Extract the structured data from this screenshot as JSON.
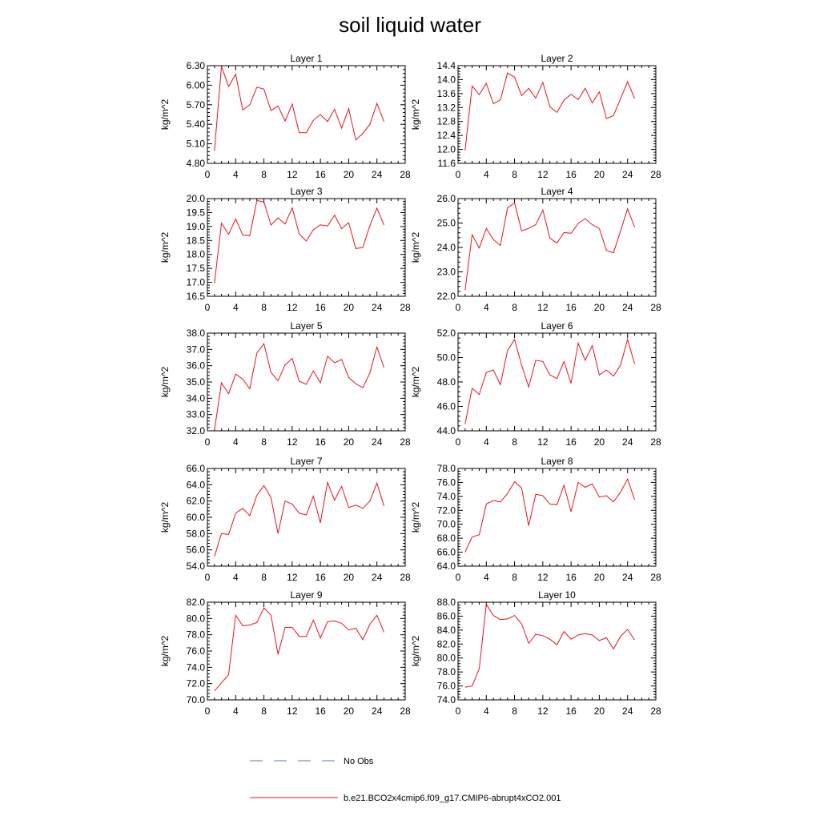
{
  "title": "soil liquid water",
  "colors": {
    "model": "#e8141c",
    "obs": "#5a6fd6",
    "axis": "#000000"
  },
  "legend": [
    {
      "label": "No Obs",
      "style": "dashed",
      "color": "#5a6fd6"
    },
    {
      "label": "b.e21.BCO2x4cmip6.f09_g17.CMIP6-abrupt4xCO2.001",
      "style": "solid",
      "color": "#e8141c"
    }
  ],
  "chart_data": [
    {
      "type": "line",
      "title": "Layer 1",
      "ylabel": "kg/m^2",
      "xlim": [
        0,
        28
      ],
      "xticks": [
        "0",
        "4",
        "8",
        "12",
        "16",
        "20",
        "24",
        "28"
      ],
      "ylim": [
        4.8,
        6.3
      ],
      "yticks": [
        "4.80",
        "5.10",
        "5.40",
        "5.70",
        "6.00",
        "6.30"
      ],
      "x": [
        1,
        2,
        3,
        4,
        5,
        6,
        7,
        8,
        9,
        10,
        11,
        12,
        13,
        14,
        15,
        16,
        17,
        18,
        19,
        20,
        21,
        22,
        23,
        24,
        25
      ],
      "series": [
        {
          "name": "b.e21.BCO2x4cmip6.f09_g17.CMIP6-abrupt4xCO2.001",
          "values": [
            4.99,
            6.29,
            5.98,
            6.17,
            5.62,
            5.7,
            5.97,
            5.94,
            5.61,
            5.68,
            5.45,
            5.71,
            5.27,
            5.27,
            5.46,
            5.55,
            5.44,
            5.63,
            5.34,
            5.64,
            5.16,
            5.26,
            5.4,
            5.72,
            5.44
          ]
        }
      ]
    },
    {
      "type": "line",
      "title": "Layer 2",
      "ylabel": "kg/m^2",
      "xlim": [
        0,
        28
      ],
      "xticks": [
        "0",
        "4",
        "8",
        "12",
        "16",
        "20",
        "24",
        "28"
      ],
      "ylim": [
        11.6,
        14.4
      ],
      "yticks": [
        "11.6",
        "12.0",
        "12.4",
        "12.8",
        "13.2",
        "13.6",
        "14.0",
        "14.4"
      ],
      "x": [
        1,
        2,
        3,
        4,
        5,
        6,
        7,
        8,
        9,
        10,
        11,
        12,
        13,
        14,
        15,
        16,
        17,
        18,
        19,
        20,
        21,
        22,
        23,
        24,
        25
      ],
      "series": [
        {
          "name": "b.e21.BCO2x4cmip6.f09_g17.CMIP6-abrupt4xCO2.001",
          "values": [
            11.97,
            13.82,
            13.57,
            13.89,
            13.31,
            13.42,
            14.19,
            14.07,
            13.54,
            13.75,
            13.47,
            13.92,
            13.22,
            13.06,
            13.41,
            13.58,
            13.43,
            13.75,
            13.33,
            13.65,
            12.88,
            12.97,
            13.45,
            13.94,
            13.46
          ]
        }
      ]
    },
    {
      "type": "line",
      "title": "Layer 3",
      "ylabel": "kg/m^2",
      "xlim": [
        0,
        28
      ],
      "xticks": [
        "0",
        "4",
        "8",
        "12",
        "16",
        "20",
        "24",
        "28"
      ],
      "ylim": [
        16.5,
        20.0
      ],
      "yticks": [
        "16.5",
        "17.0",
        "17.5",
        "18.0",
        "18.5",
        "19.0",
        "19.5",
        "20.0"
      ],
      "x": [
        1,
        2,
        3,
        4,
        5,
        6,
        7,
        8,
        9,
        10,
        11,
        12,
        13,
        14,
        15,
        16,
        17,
        18,
        19,
        20,
        21,
        22,
        23,
        24,
        25
      ],
      "series": [
        {
          "name": "b.e21.BCO2x4cmip6.f09_g17.CMIP6-abrupt4xCO2.001",
          "values": [
            16.97,
            19.12,
            18.72,
            19.27,
            18.7,
            18.67,
            19.93,
            19.88,
            19.05,
            19.31,
            19.09,
            19.67,
            18.73,
            18.48,
            18.88,
            19.06,
            19.02,
            19.41,
            18.92,
            19.14,
            18.21,
            18.25,
            19.03,
            19.66,
            19.05
          ]
        }
      ]
    },
    {
      "type": "line",
      "title": "Layer 4",
      "ylabel": "kg/m^2",
      "xlim": [
        0,
        28
      ],
      "xticks": [
        "0",
        "4",
        "8",
        "12",
        "16",
        "20",
        "24",
        "28"
      ],
      "ylim": [
        22.0,
        26.0
      ],
      "yticks": [
        "22.0",
        "23.0",
        "24.0",
        "25.0",
        "26.0"
      ],
      "x": [
        1,
        2,
        3,
        4,
        5,
        6,
        7,
        8,
        9,
        10,
        11,
        12,
        13,
        14,
        15,
        16,
        17,
        18,
        19,
        20,
        21,
        22,
        23,
        24,
        25
      ],
      "series": [
        {
          "name": "b.e21.BCO2x4cmip6.f09_g17.CMIP6-abrupt4xCO2.001",
          "values": [
            22.25,
            24.52,
            23.98,
            24.78,
            24.32,
            24.08,
            25.62,
            25.83,
            24.68,
            24.78,
            24.93,
            25.53,
            24.38,
            24.18,
            24.61,
            24.58,
            24.98,
            25.18,
            24.93,
            24.78,
            23.88,
            23.78,
            24.68,
            25.58,
            24.83
          ]
        }
      ]
    },
    {
      "type": "line",
      "title": "Layer 5",
      "ylabel": "kg/m^2",
      "xlim": [
        0,
        28
      ],
      "xticks": [
        "0",
        "4",
        "8",
        "12",
        "16",
        "20",
        "24",
        "28"
      ],
      "ylim": [
        32.0,
        38.0
      ],
      "yticks": [
        "32.0",
        "33.0",
        "34.0",
        "35.0",
        "36.0",
        "37.0",
        "38.0"
      ],
      "x": [
        1,
        2,
        3,
        4,
        5,
        6,
        7,
        8,
        9,
        10,
        11,
        12,
        13,
        14,
        15,
        16,
        17,
        18,
        19,
        20,
        21,
        22,
        23,
        24,
        25
      ],
      "series": [
        {
          "name": "b.e21.BCO2x4cmip6.f09_g17.CMIP6-abrupt4xCO2.001",
          "values": [
            32.05,
            34.95,
            34.28,
            35.48,
            35.18,
            34.58,
            36.78,
            37.35,
            35.58,
            35.08,
            36.05,
            36.45,
            35.05,
            34.85,
            35.68,
            34.95,
            36.58,
            36.18,
            36.38,
            35.28,
            34.88,
            34.65,
            35.55,
            37.15,
            35.88
          ]
        }
      ]
    },
    {
      "type": "line",
      "title": "Layer 6",
      "ylabel": "kg/m^2",
      "xlim": [
        0,
        28
      ],
      "xticks": [
        "0",
        "4",
        "8",
        "12",
        "16",
        "20",
        "24",
        "28"
      ],
      "ylim": [
        44.0,
        52.0
      ],
      "yticks": [
        "44.0",
        "46.0",
        "48.0",
        "50.0",
        "52.0"
      ],
      "x": [
        1,
        2,
        3,
        4,
        5,
        6,
        7,
        8,
        9,
        10,
        11,
        12,
        13,
        14,
        15,
        16,
        17,
        18,
        19,
        20,
        21,
        22,
        23,
        24,
        25
      ],
      "series": [
        {
          "name": "b.e21.BCO2x4cmip6.f09_g17.CMIP6-abrupt4xCO2.001",
          "values": [
            44.55,
            47.48,
            46.98,
            48.78,
            48.98,
            47.78,
            50.58,
            51.48,
            49.38,
            47.58,
            49.78,
            49.68,
            48.58,
            48.28,
            49.68,
            47.88,
            51.18,
            49.78,
            50.98,
            48.58,
            48.98,
            48.48,
            49.38,
            51.48,
            49.48
          ]
        }
      ]
    },
    {
      "type": "line",
      "title": "Layer 7",
      "ylabel": "kg/m^2",
      "xlim": [
        0,
        28
      ],
      "xticks": [
        "0",
        "4",
        "8",
        "12",
        "16",
        "20",
        "24",
        "28"
      ],
      "ylim": [
        54.0,
        66.0
      ],
      "yticks": [
        "54.0",
        "56.0",
        "58.0",
        "60.0",
        "62.0",
        "64.0",
        "66.0"
      ],
      "x": [
        1,
        2,
        3,
        4,
        5,
        6,
        7,
        8,
        9,
        10,
        11,
        12,
        13,
        14,
        15,
        16,
        17,
        18,
        19,
        20,
        21,
        22,
        23,
        24,
        25
      ],
      "series": [
        {
          "name": "b.e21.BCO2x4cmip6.f09_g17.CMIP6-abrupt4xCO2.001",
          "values": [
            55.2,
            58.0,
            57.9,
            60.5,
            61.1,
            60.2,
            62.7,
            63.9,
            62.4,
            58.0,
            62.0,
            61.6,
            60.5,
            60.3,
            62.6,
            59.3,
            64.3,
            62.1,
            63.8,
            61.2,
            61.5,
            61.1,
            62.0,
            64.2,
            61.4
          ]
        }
      ]
    },
    {
      "type": "line",
      "title": "Layer 8",
      "ylabel": "kg/m^2",
      "xlim": [
        0,
        28
      ],
      "xticks": [
        "0",
        "4",
        "8",
        "12",
        "16",
        "20",
        "24",
        "28"
      ],
      "ylim": [
        64.0,
        78.0
      ],
      "yticks": [
        "64.0",
        "66.0",
        "68.0",
        "70.0",
        "72.0",
        "74.0",
        "76.0",
        "78.0"
      ],
      "x": [
        1,
        2,
        3,
        4,
        5,
        6,
        7,
        8,
        9,
        10,
        11,
        12,
        13,
        14,
        15,
        16,
        17,
        18,
        19,
        20,
        21,
        22,
        23,
        24,
        25
      ],
      "series": [
        {
          "name": "b.e21.BCO2x4cmip6.f09_g17.CMIP6-abrupt4xCO2.001",
          "values": [
            66.0,
            68.2,
            68.5,
            72.9,
            73.4,
            73.2,
            74.4,
            76.1,
            75.2,
            69.8,
            74.3,
            74.1,
            72.9,
            72.8,
            75.6,
            71.8,
            76.0,
            75.3,
            75.8,
            73.9,
            74.1,
            73.2,
            74.6,
            76.5,
            73.5
          ]
        }
      ]
    },
    {
      "type": "line",
      "title": "Layer 9",
      "ylabel": "kg/m^2",
      "xlim": [
        0,
        28
      ],
      "xticks": [
        "0",
        "4",
        "8",
        "12",
        "16",
        "20",
        "24",
        "28"
      ],
      "ylim": [
        70.0,
        82.0
      ],
      "yticks": [
        "70.0",
        "72.0",
        "74.0",
        "76.0",
        "78.0",
        "80.0",
        "82.0"
      ],
      "x": [
        1,
        2,
        3,
        4,
        5,
        6,
        7,
        8,
        9,
        10,
        11,
        12,
        13,
        14,
        15,
        16,
        17,
        18,
        19,
        20,
        21,
        22,
        23,
        24,
        25
      ],
      "series": [
        {
          "name": "b.e21.BCO2x4cmip6.f09_g17.CMIP6-abrupt4xCO2.001",
          "values": [
            71.1,
            72.1,
            73.1,
            80.4,
            79.1,
            79.2,
            79.5,
            81.3,
            80.4,
            75.6,
            78.9,
            78.9,
            77.8,
            77.8,
            79.8,
            77.6,
            79.6,
            79.7,
            79.4,
            78.6,
            78.8,
            77.4,
            79.3,
            80.4,
            78.3
          ]
        }
      ]
    },
    {
      "type": "line",
      "title": "Layer 10",
      "ylabel": "kg/m^2",
      "xlim": [
        0,
        28
      ],
      "xticks": [
        "0",
        "4",
        "8",
        "12",
        "16",
        "20",
        "24",
        "28"
      ],
      "ylim": [
        74.0,
        88.0
      ],
      "yticks": [
        "74.0",
        "76.0",
        "78.0",
        "80.0",
        "82.0",
        "84.0",
        "86.0",
        "88.0"
      ],
      "x": [
        1,
        2,
        3,
        4,
        5,
        6,
        7,
        8,
        9,
        10,
        11,
        12,
        13,
        14,
        15,
        16,
        17,
        18,
        19,
        20,
        21,
        22,
        23,
        24,
        25
      ],
      "series": [
        {
          "name": "b.e21.BCO2x4cmip6.f09_g17.CMIP6-abrupt4xCO2.001",
          "values": [
            75.8,
            76.0,
            78.5,
            87.7,
            86.1,
            85.5,
            85.6,
            86.1,
            84.9,
            82.1,
            83.4,
            83.2,
            82.7,
            81.9,
            83.8,
            82.7,
            83.3,
            83.5,
            83.3,
            82.5,
            82.9,
            81.3,
            83.1,
            84.1,
            82.6
          ]
        }
      ]
    }
  ]
}
